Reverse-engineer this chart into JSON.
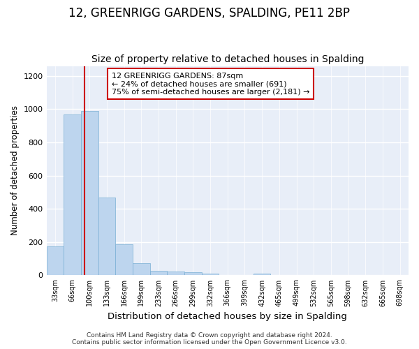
{
  "title": "12, GREENRIGG GARDENS, SPALDING, PE11 2BP",
  "subtitle": "Size of property relative to detached houses in Spalding",
  "xlabel": "Distribution of detached houses by size in Spalding",
  "ylabel": "Number of detached properties",
  "bar_color": "#bdd5ee",
  "bar_edge_color": "#7aafd4",
  "background_color": "#e8eef8",
  "grid_color": "#ffffff",
  "categories": [
    "33sqm",
    "66sqm",
    "100sqm",
    "133sqm",
    "166sqm",
    "199sqm",
    "233sqm",
    "266sqm",
    "299sqm",
    "332sqm",
    "366sqm",
    "399sqm",
    "432sqm",
    "465sqm",
    "499sqm",
    "532sqm",
    "565sqm",
    "598sqm",
    "632sqm",
    "665sqm",
    "698sqm"
  ],
  "values": [
    172,
    968,
    990,
    468,
    185,
    75,
    27,
    22,
    20,
    12,
    0,
    0,
    12,
    0,
    0,
    0,
    0,
    0,
    0,
    0,
    0
  ],
  "ylim": [
    0,
    1260
  ],
  "yticks": [
    0,
    200,
    400,
    600,
    800,
    1000,
    1200
  ],
  "property_line_x": 1.72,
  "property_line_color": "#cc0000",
  "annotation_text": "12 GREENRIGG GARDENS: 87sqm\n← 24% of detached houses are smaller (691)\n75% of semi-detached houses are larger (2,181) →",
  "annotation_box_color": "#ffffff",
  "annotation_box_edge_color": "#cc0000",
  "footer_text": "Contains HM Land Registry data © Crown copyright and database right 2024.\nContains public sector information licensed under the Open Government Licence v3.0.",
  "title_fontsize": 12,
  "subtitle_fontsize": 10,
  "xlabel_fontsize": 9.5,
  "ylabel_fontsize": 8.5,
  "annotation_fontsize": 8,
  "footer_fontsize": 6.5,
  "tick_fontsize": 7
}
